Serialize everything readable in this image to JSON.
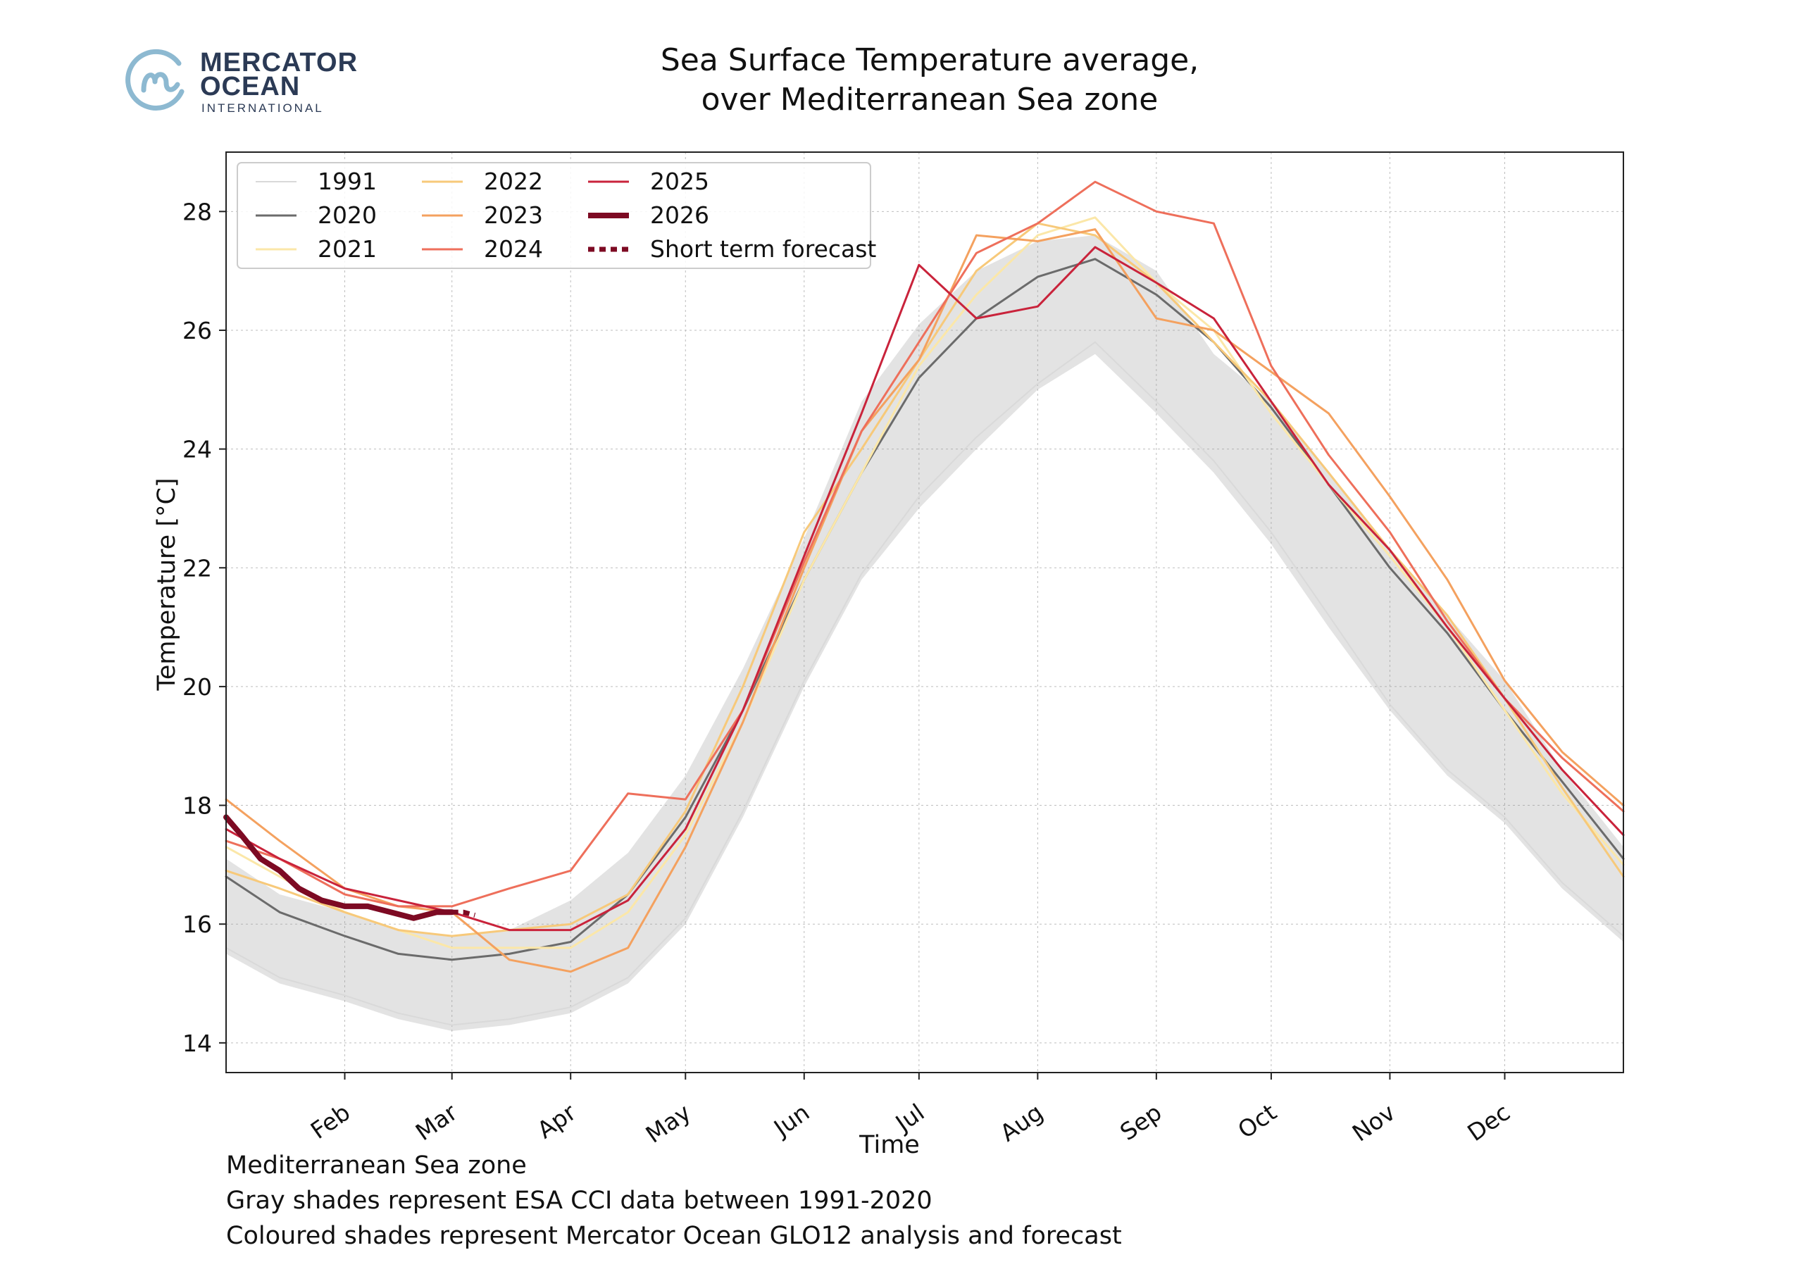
{
  "logo": {
    "line1": "MERCATOR",
    "line2": "OCEAN",
    "line3": "INTERNATIONAL",
    "colors": {
      "circle": "#8db9d1",
      "text": "#2b3a55"
    }
  },
  "title_line1": "Sea Surface Temperature average,",
  "title_line2": "over Mediterranean Sea zone",
  "footnotes": [
    "Mediterranean Sea zone",
    "Gray shades represent ESA CCI data between 1991-2020",
    "Coloured shades represent Mercator Ocean GLO12 analysis and forecast"
  ],
  "chart_data": {
    "type": "line",
    "title": "Sea Surface Temperature average, over Mediterranean Sea zone",
    "xlabel": "Time",
    "ylabel": "Temperature [°C]",
    "x_unit": "day of year",
    "xlim": [
      1,
      366
    ],
    "ylim": [
      13.5,
      29.0
    ],
    "yticks": [
      14,
      16,
      18,
      20,
      22,
      24,
      26,
      28
    ],
    "xticks": [
      {
        "day": 32,
        "label": "Feb"
      },
      {
        "day": 60,
        "label": "Mar"
      },
      {
        "day": 91,
        "label": "Apr"
      },
      {
        "day": 121,
        "label": "May"
      },
      {
        "day": 152,
        "label": "Jun"
      },
      {
        "day": 182,
        "label": "Jul"
      },
      {
        "day": 213,
        "label": "Aug"
      },
      {
        "day": 244,
        "label": "Sep"
      },
      {
        "day": 274,
        "label": "Oct"
      },
      {
        "day": 305,
        "label": "Nov"
      },
      {
        "day": 335,
        "label": "Dec"
      }
    ],
    "grid": true,
    "legend_position": "top-left",
    "climatology_years": "1991-2020",
    "climatology_envelope": {
      "x": [
        1,
        15,
        32,
        46,
        60,
        75,
        91,
        106,
        121,
        136,
        152,
        167,
        182,
        197,
        213,
        228,
        244,
        259,
        274,
        289,
        305,
        320,
        335,
        350,
        366
      ],
      "low": [
        15.5,
        15.0,
        14.7,
        14.4,
        14.2,
        14.3,
        14.5,
        15.0,
        16.0,
        17.8,
        20.0,
        21.8,
        23.0,
        24.0,
        25.0,
        25.6,
        24.6,
        23.6,
        22.4,
        21.0,
        19.6,
        18.5,
        17.7,
        16.6,
        15.7
      ],
      "high": [
        17.1,
        16.5,
        16.2,
        15.9,
        15.8,
        15.9,
        16.4,
        17.2,
        18.5,
        20.3,
        22.5,
        24.8,
        26.1,
        27.0,
        27.5,
        27.6,
        27.0,
        25.6,
        24.8,
        23.6,
        22.3,
        21.2,
        20.1,
        18.6,
        17.3
      ]
    },
    "series": [
      {
        "name": "1991",
        "color": "#d9d9d9",
        "width": 2,
        "x": [
          1,
          15,
          32,
          46,
          60,
          75,
          91,
          106,
          121,
          136,
          152,
          167,
          182,
          197,
          213,
          228,
          244,
          259,
          274,
          289,
          305,
          320,
          335,
          350,
          366
        ],
        "y": [
          15.6,
          15.1,
          14.8,
          14.5,
          14.3,
          14.4,
          14.6,
          15.1,
          16.1,
          17.9,
          20.1,
          21.9,
          23.2,
          24.2,
          25.1,
          25.8,
          24.8,
          23.8,
          22.6,
          21.2,
          19.7,
          18.6,
          17.8,
          16.7,
          15.8
        ]
      },
      {
        "name": "2020",
        "color": "#6b6b6b",
        "width": 3,
        "x": [
          1,
          15,
          32,
          46,
          60,
          75,
          91,
          106,
          121,
          136,
          152,
          167,
          182,
          197,
          213,
          228,
          244,
          259,
          274,
          289,
          305,
          320,
          335,
          350,
          366
        ],
        "y": [
          16.8,
          16.2,
          15.8,
          15.5,
          15.4,
          15.5,
          15.7,
          16.5,
          17.8,
          19.6,
          21.8,
          23.6,
          25.2,
          26.2,
          26.9,
          27.2,
          26.6,
          25.8,
          24.7,
          23.4,
          22.0,
          20.9,
          19.6,
          18.4,
          17.1
        ]
      },
      {
        "name": "2021",
        "color": "#fbe7a8",
        "width": 3,
        "x": [
          1,
          15,
          32,
          46,
          60,
          75,
          91,
          106,
          121,
          136,
          152,
          167,
          182,
          197,
          213,
          228,
          244,
          259,
          274,
          289,
          305,
          320,
          335,
          350,
          366
        ],
        "y": [
          17.3,
          16.8,
          16.2,
          15.9,
          15.6,
          15.6,
          15.6,
          16.2,
          17.5,
          19.4,
          21.8,
          23.6,
          25.4,
          26.6,
          27.6,
          27.9,
          26.8,
          26.0,
          24.6,
          23.4,
          22.2,
          21.0,
          19.6,
          18.2,
          17.0
        ]
      },
      {
        "name": "2022",
        "color": "#f7c97a",
        "width": 3,
        "x": [
          1,
          15,
          32,
          46,
          60,
          75,
          91,
          106,
          121,
          136,
          152,
          167,
          182,
          197,
          213,
          228,
          244,
          259,
          274,
          289,
          305,
          320,
          335,
          350,
          366
        ],
        "y": [
          16.9,
          16.6,
          16.2,
          15.9,
          15.8,
          15.9,
          16.0,
          16.5,
          17.9,
          20.0,
          22.6,
          24.0,
          25.5,
          27.0,
          27.8,
          27.6,
          26.8,
          25.8,
          24.8,
          23.6,
          22.3,
          21.2,
          19.8,
          18.3,
          16.8
        ]
      },
      {
        "name": "2023",
        "color": "#f4a15f",
        "width": 3,
        "x": [
          1,
          15,
          32,
          46,
          60,
          75,
          91,
          106,
          121,
          136,
          152,
          167,
          182,
          197,
          213,
          228,
          244,
          259,
          274,
          289,
          305,
          320,
          335,
          350,
          366
        ],
        "y": [
          18.1,
          17.4,
          16.6,
          16.3,
          16.2,
          15.4,
          15.2,
          15.6,
          17.3,
          19.4,
          22.0,
          24.3,
          25.5,
          27.6,
          27.5,
          27.7,
          26.2,
          26.0,
          25.3,
          24.6,
          23.2,
          21.8,
          20.1,
          18.9,
          18.0
        ]
      },
      {
        "name": "2024",
        "color": "#ee6f5b",
        "width": 3,
        "x": [
          1,
          15,
          32,
          46,
          60,
          75,
          91,
          106,
          121,
          136,
          152,
          167,
          182,
          197,
          213,
          228,
          244,
          259,
          274,
          289,
          305,
          320,
          335,
          350,
          366
        ],
        "y": [
          17.4,
          17.1,
          16.5,
          16.3,
          16.3,
          16.6,
          16.9,
          18.2,
          18.1,
          19.6,
          22.1,
          24.3,
          25.8,
          27.3,
          27.8,
          28.5,
          28.0,
          27.8,
          25.4,
          23.9,
          22.6,
          21.1,
          19.8,
          18.8,
          17.9
        ]
      },
      {
        "name": "2025",
        "color": "#c9233b",
        "width": 3,
        "x": [
          1,
          15,
          32,
          46,
          60,
          75,
          91,
          106,
          121,
          136,
          152,
          167,
          182,
          197,
          213,
          228,
          244,
          259,
          274,
          289,
          305,
          320,
          335,
          350,
          366
        ],
        "y": [
          17.6,
          17.1,
          16.6,
          16.4,
          16.2,
          15.9,
          15.9,
          16.4,
          17.6,
          19.6,
          22.2,
          24.6,
          27.1,
          26.2,
          26.4,
          27.4,
          26.8,
          26.2,
          24.8,
          23.4,
          22.3,
          21.0,
          19.8,
          18.6,
          17.5
        ]
      },
      {
        "name": "2026",
        "color": "#7d0a23",
        "width": 8,
        "x": [
          1,
          5,
          10,
          15,
          20,
          26,
          32,
          38,
          44,
          50,
          56,
          60
        ],
        "y": [
          17.8,
          17.5,
          17.1,
          16.9,
          16.6,
          16.4,
          16.3,
          16.3,
          16.2,
          16.1,
          16.2,
          16.2
        ]
      },
      {
        "name": "Short term forecast",
        "color": "#7d0a23",
        "width": 7,
        "dash": "9,7",
        "x": [
          60,
          63,
          66
        ],
        "y": [
          16.2,
          16.2,
          16.15
        ]
      }
    ]
  }
}
